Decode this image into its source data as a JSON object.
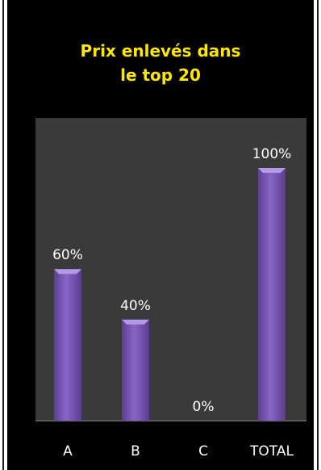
{
  "title_lines": [
    "Prix enlevés dans",
    "le top 20"
  ],
  "colors": {
    "background": "#000000",
    "plot_area": "#3a3a3a",
    "bar_fill": "#7a58b6",
    "title": "#ffe800",
    "labels": "#ffffff"
  },
  "chart_data": {
    "type": "bar",
    "title": "Prix enlevés dans le top 20",
    "categories": [
      "A",
      "B",
      "C",
      "TOTAL"
    ],
    "values": [
      60,
      40,
      0,
      100
    ],
    "data_labels": [
      "60%",
      "40%",
      "0%",
      "100%"
    ],
    "ylim": [
      0,
      100
    ],
    "unit": "%",
    "grid": false,
    "legend": "none"
  }
}
